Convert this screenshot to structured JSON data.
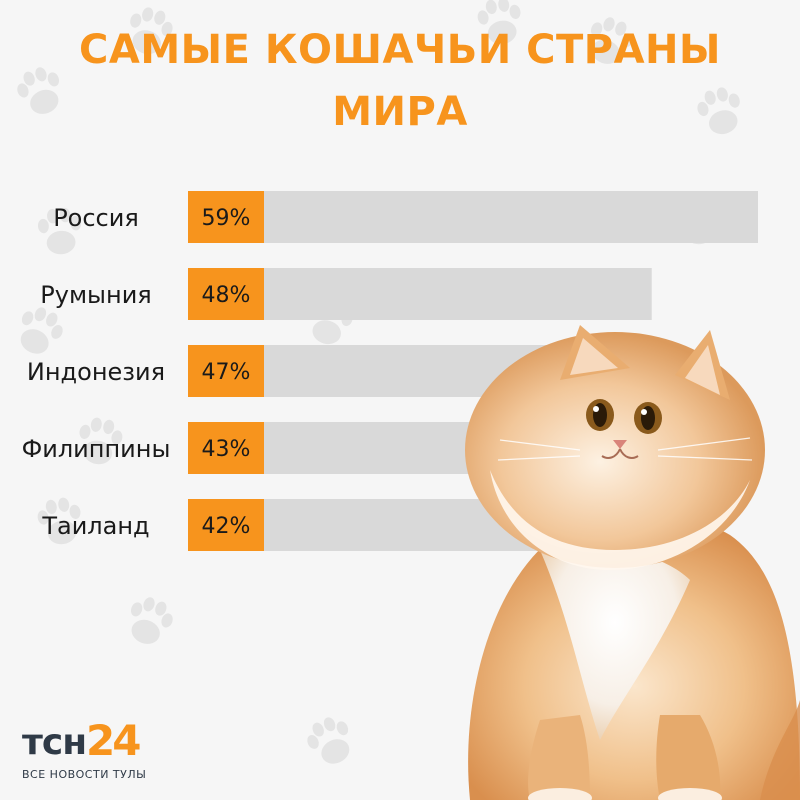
{
  "title_line1": "САМЫЕ КОШАЧЬИ СТРАНЫ",
  "title_line2": "МИРА",
  "colors": {
    "accent": "#f7941d",
    "track": "#d9d9d9",
    "text": "#1a1a1a",
    "logo_dark": "#2f3a47"
  },
  "chart_data": {
    "type": "bar",
    "orientation": "horizontal",
    "categories": [
      "Россия",
      "Румыния",
      "Индонезия",
      "Филиппины",
      "Таиланд"
    ],
    "values": [
      59,
      48,
      47,
      43,
      42
    ],
    "value_labels": [
      "59%",
      "48%",
      "47%",
      "43%",
      "42%"
    ],
    "title": "САМЫЕ КОШАЧЬИ СТРАНЫ МИРА",
    "grid": false
  },
  "logo": {
    "word": "тсн",
    "number": "24",
    "subtitle": "ВСЕ НОВОСТИ ТУЛЫ"
  },
  "decor": {
    "background_icon": "paw-print-icon",
    "image": "fluffy-ginger-cat"
  }
}
